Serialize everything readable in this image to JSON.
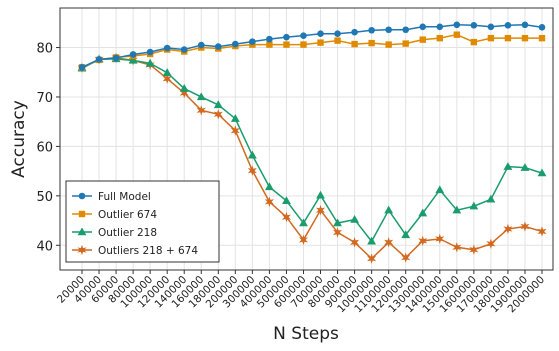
{
  "chart_data": {
    "type": "line",
    "xlabel": "N Steps",
    "ylabel": "Accuracy",
    "ylim": [
      35,
      88
    ],
    "yticks": [
      40,
      50,
      60,
      70,
      80
    ],
    "grid": true,
    "legend_position": "bottom-left",
    "x": [
      "20000",
      "40000",
      "60000",
      "80000",
      "100000",
      "120000",
      "140000",
      "160000",
      "180000",
      "200000",
      "300000",
      "400000",
      "500000",
      "600000",
      "700000",
      "800000",
      "900000",
      "1000000",
      "1100000",
      "1200000",
      "1300000",
      "1400000",
      "1500000",
      "1600000",
      "1700000",
      "1800000",
      "1900000",
      "2000000"
    ],
    "series": [
      {
        "name": "Full Model",
        "color": "#1f77b4",
        "marker": "circle",
        "values": [
          76.0,
          77.6,
          77.9,
          78.6,
          79.1,
          79.9,
          79.6,
          80.5,
          80.2,
          80.7,
          81.2,
          81.7,
          82.1,
          82.4,
          82.8,
          82.8,
          83.1,
          83.5,
          83.6,
          83.6,
          84.2,
          84.2,
          84.6,
          84.5,
          84.2,
          84.5,
          84.6,
          84.1
        ]
      },
      {
        "name": "Outlier 674",
        "color": "#e08a00",
        "marker": "square",
        "values": [
          76.0,
          77.5,
          78.0,
          78.3,
          78.7,
          79.6,
          79.2,
          80.0,
          79.8,
          80.3,
          80.6,
          80.6,
          80.6,
          80.6,
          81.0,
          81.4,
          80.7,
          80.9,
          80.6,
          80.8,
          81.6,
          81.9,
          82.6,
          81.1,
          81.9,
          81.9,
          81.9,
          81.9
        ]
      },
      {
        "name": "Outlier 218",
        "color": "#1a9c6c",
        "marker": "triangle",
        "values": [
          75.8,
          77.6,
          77.7,
          77.4,
          76.8,
          74.9,
          71.7,
          70.0,
          68.4,
          65.6,
          58.2,
          51.8,
          49.0,
          44.5,
          50.1,
          44.5,
          45.2,
          40.8,
          47.1,
          42.1,
          46.5,
          51.2,
          47.1,
          47.9,
          49.3,
          55.9,
          55.7,
          54.6
        ]
      },
      {
        "name": "Outliers 218 + 674",
        "color": "#d2691e",
        "marker": "star",
        "values": [
          75.9,
          77.6,
          77.9,
          77.4,
          76.5,
          73.7,
          70.8,
          67.3,
          66.5,
          63.2,
          55.1,
          48.8,
          45.7,
          41.1,
          47.1,
          42.6,
          40.6,
          37.3,
          40.6,
          37.5,
          40.9,
          41.3,
          39.6,
          39.1,
          40.3,
          43.3,
          43.8,
          42.8
        ]
      }
    ]
  }
}
